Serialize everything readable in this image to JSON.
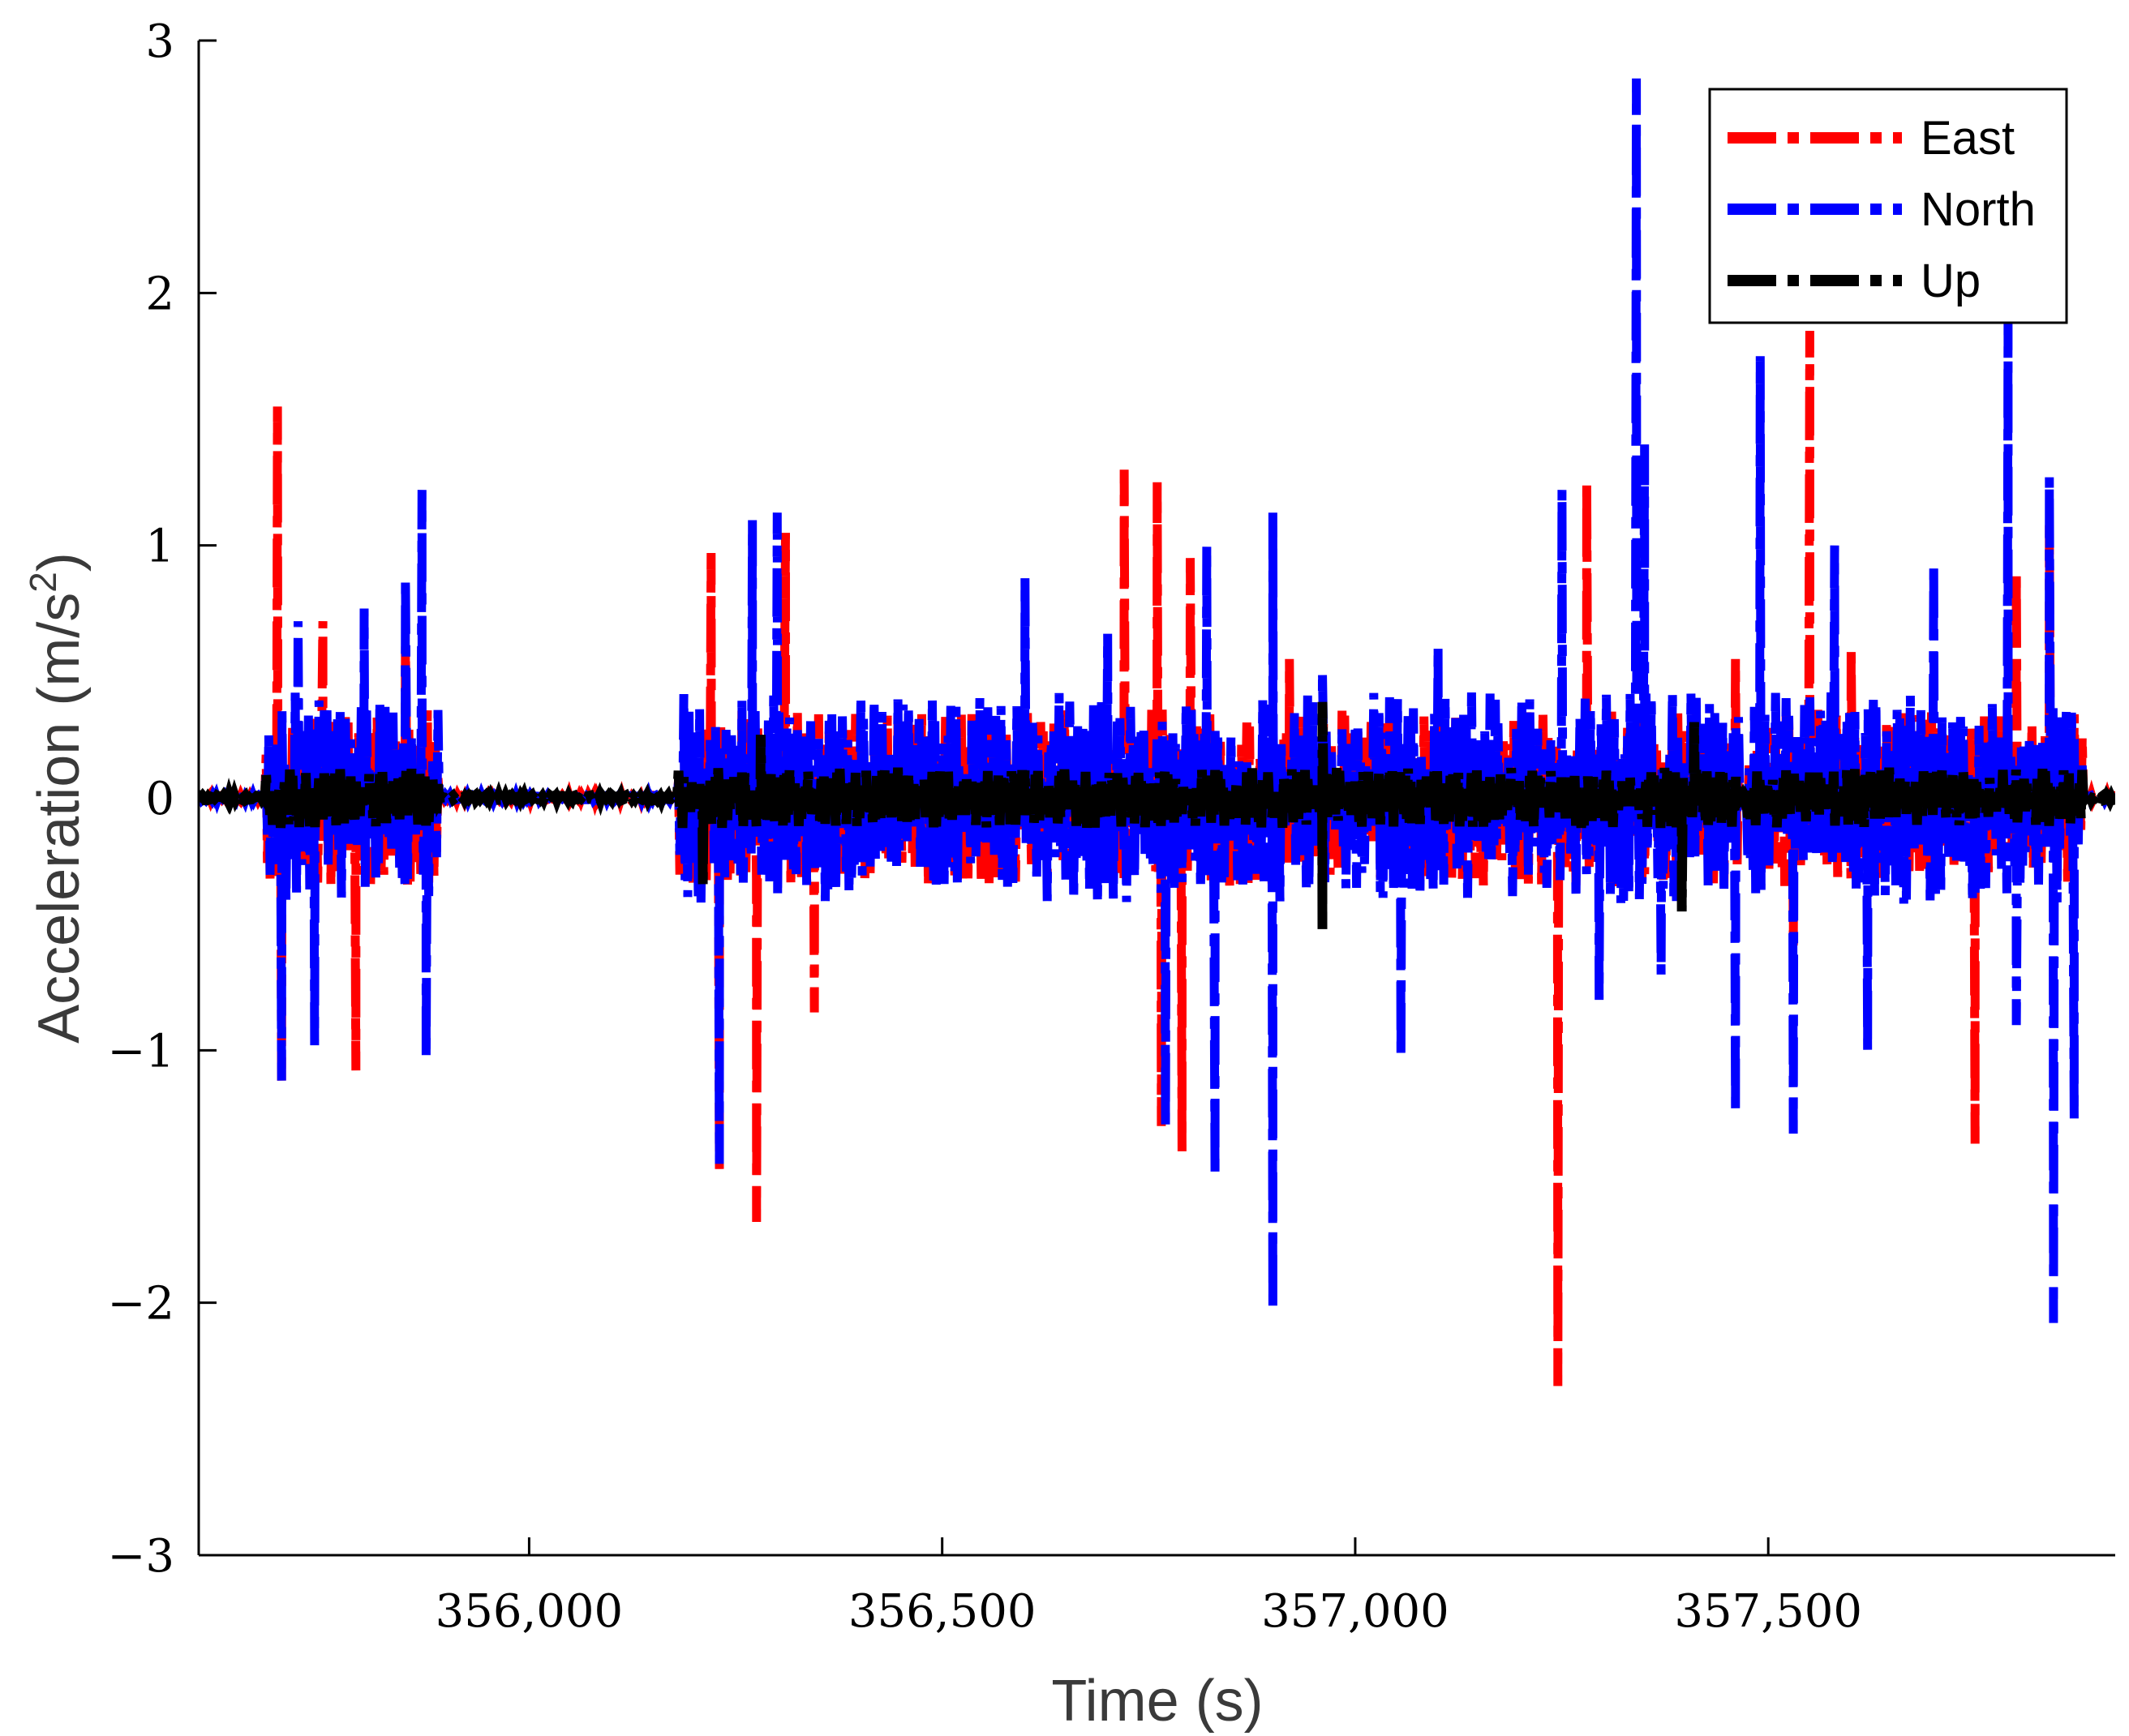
{
  "chart_data": {
    "type": "line",
    "title": "",
    "xlabel": "Time (s)",
    "ylabel": "Acceleration (m/s",
    "ylabel_sup": "2",
    "ylabel_end": ")",
    "xlim": [
      355600,
      357920
    ],
    "ylim": [
      -3,
      3
    ],
    "xticks": [
      356000,
      356500,
      357000,
      357500
    ],
    "xtick_labels": [
      "356,000",
      "356,500",
      "357,000",
      "357,500"
    ],
    "yticks": [
      -3,
      -2,
      -1,
      0,
      1,
      2,
      3
    ],
    "ytick_labels": [
      "−3",
      "−2",
      "−1",
      "0",
      "1",
      "2",
      "3"
    ],
    "grid": false,
    "legend_position": "top-right",
    "active_segments": [
      [
        355680,
        355890
      ],
      [
        356180,
        357465
      ],
      [
        357475,
        357880
      ]
    ],
    "series": [
      {
        "name": "East",
        "color": "#ff0000",
        "peaks": [
          [
            355695,
            1.55
          ],
          [
            355700,
            -1.12
          ],
          [
            355750,
            0.7
          ],
          [
            355790,
            -1.08
          ],
          [
            355850,
            0.6
          ],
          [
            356220,
            0.97
          ],
          [
            356230,
            -1.47
          ],
          [
            356275,
            -1.68
          ],
          [
            356310,
            1.05
          ],
          [
            356345,
            -0.85
          ],
          [
            356720,
            1.3
          ],
          [
            356760,
            1.25
          ],
          [
            356765,
            -1.3
          ],
          [
            356790,
            -1.4
          ],
          [
            356800,
            0.95
          ],
          [
            356920,
            0.55
          ],
          [
            357245,
            -2.33
          ],
          [
            357280,
            1.25
          ],
          [
            357460,
            0.55
          ],
          [
            357550,
            1.85
          ],
          [
            357530,
            -0.6
          ],
          [
            357600,
            0.6
          ],
          [
            357750,
            -1.37
          ],
          [
            357800,
            0.9
          ],
          [
            357840,
            1.08
          ]
        ],
        "noise_amp": 0.35
      },
      {
        "name": "North",
        "color": "#0000ff",
        "peaks": [
          [
            355700,
            -1.12
          ],
          [
            355720,
            0.7
          ],
          [
            355740,
            -0.98
          ],
          [
            355800,
            0.75
          ],
          [
            355850,
            0.87
          ],
          [
            355870,
            1.22
          ],
          [
            355875,
            -1.03
          ],
          [
            356230,
            -1.45
          ],
          [
            356270,
            1.1
          ],
          [
            356300,
            1.13
          ],
          [
            356600,
            0.87
          ],
          [
            356700,
            0.65
          ],
          [
            356770,
            -1.3
          ],
          [
            356820,
            1.0
          ],
          [
            356830,
            -1.5
          ],
          [
            356900,
            -2.03
          ],
          [
            356900,
            1.13
          ],
          [
            356960,
            0.5
          ],
          [
            357055,
            -1.03
          ],
          [
            357100,
            0.6
          ],
          [
            357250,
            1.22
          ],
          [
            357295,
            -0.8
          ],
          [
            357340,
            2.85
          ],
          [
            357350,
            1.4
          ],
          [
            357370,
            -0.7
          ],
          [
            357460,
            -1.25
          ],
          [
            357490,
            1.75
          ],
          [
            357530,
            -1.33
          ],
          [
            357580,
            1.0
          ],
          [
            357620,
            -1.0
          ],
          [
            357700,
            0.93
          ],
          [
            357790,
            1.9
          ],
          [
            357800,
            -0.9
          ],
          [
            357840,
            1.27
          ],
          [
            357845,
            -2.08
          ],
          [
            357870,
            -1.27
          ]
        ],
        "noise_amp": 0.42
      },
      {
        "name": "Up",
        "color": "#000000",
        "peaks": [
          [
            355700,
            -0.07
          ],
          [
            356210,
            -0.35
          ],
          [
            356280,
            0.25
          ],
          [
            356960,
            -0.52
          ],
          [
            356960,
            0.38
          ],
          [
            357395,
            -0.45
          ],
          [
            357410,
            0.3
          ]
        ],
        "noise_amp": 0.12
      }
    ]
  }
}
